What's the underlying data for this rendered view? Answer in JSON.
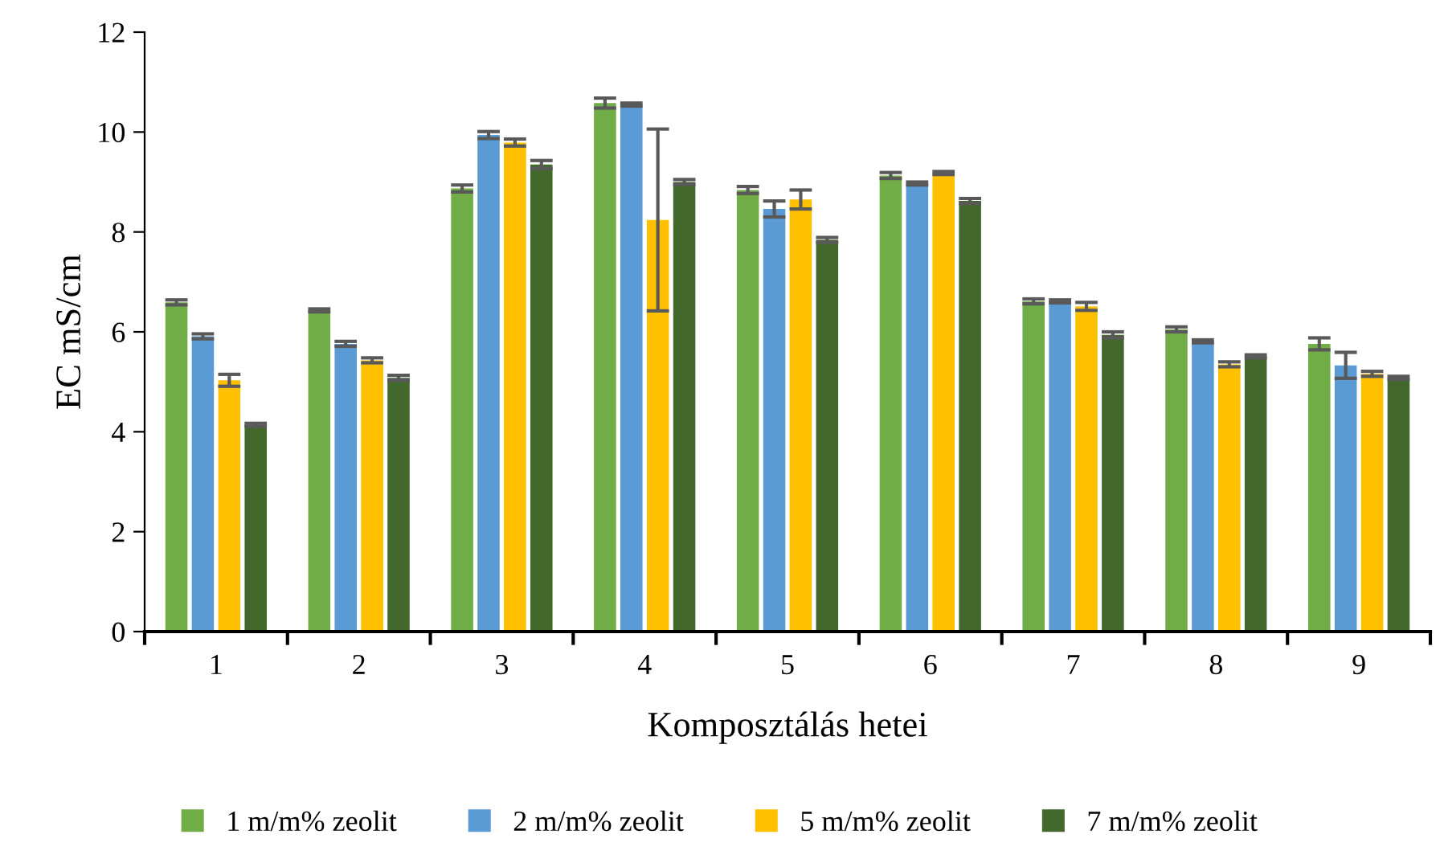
{
  "chart_data": {
    "type": "bar",
    "xlabel": "Komposztálás hetei",
    "ylabel": "EC mS/cm",
    "categories": [
      "1",
      "2",
      "3",
      "4",
      "5",
      "6",
      "7",
      "8",
      "9"
    ],
    "series": [
      {
        "name": "1 m/m% zeolit",
        "color": "#70ad47",
        "values": [
          6.59,
          6.43,
          8.87,
          10.58,
          8.84,
          9.13,
          6.61,
          6.05,
          5.76
        ],
        "errors": [
          0.05,
          0.03,
          0.07,
          0.1,
          0.07,
          0.06,
          0.05,
          0.05,
          0.12
        ]
      },
      {
        "name": "2 m/m% zeolit",
        "color": "#5b9bd5",
        "values": [
          5.91,
          5.76,
          9.94,
          10.55,
          8.46,
          8.97,
          6.61,
          5.81,
          5.33
        ],
        "errors": [
          0.05,
          0.05,
          0.07,
          0.03,
          0.16,
          0.03,
          0.03,
          0.03,
          0.26
        ]
      },
      {
        "name": "5 m/m% zeolit",
        "color": "#ffc000",
        "values": [
          5.03,
          5.43,
          9.79,
          8.24,
          8.65,
          9.18,
          6.51,
          5.35,
          5.16
        ],
        "errors": [
          0.12,
          0.05,
          0.07,
          1.82,
          0.19,
          0.03,
          0.08,
          0.05,
          0.05
        ]
      },
      {
        "name": "7 m/m% zeolit",
        "color": "#43682b",
        "values": [
          4.14,
          5.08,
          9.35,
          9.0,
          7.84,
          8.62,
          5.94,
          5.51,
          5.08
        ],
        "errors": [
          0.03,
          0.05,
          0.08,
          0.05,
          0.05,
          0.05,
          0.06,
          0.03,
          0.03
        ]
      }
    ],
    "ylim": [
      0,
      12
    ],
    "yticks": [
      0,
      2,
      4,
      6,
      8,
      10,
      12
    ],
    "grid": false,
    "legend": "bottom"
  }
}
